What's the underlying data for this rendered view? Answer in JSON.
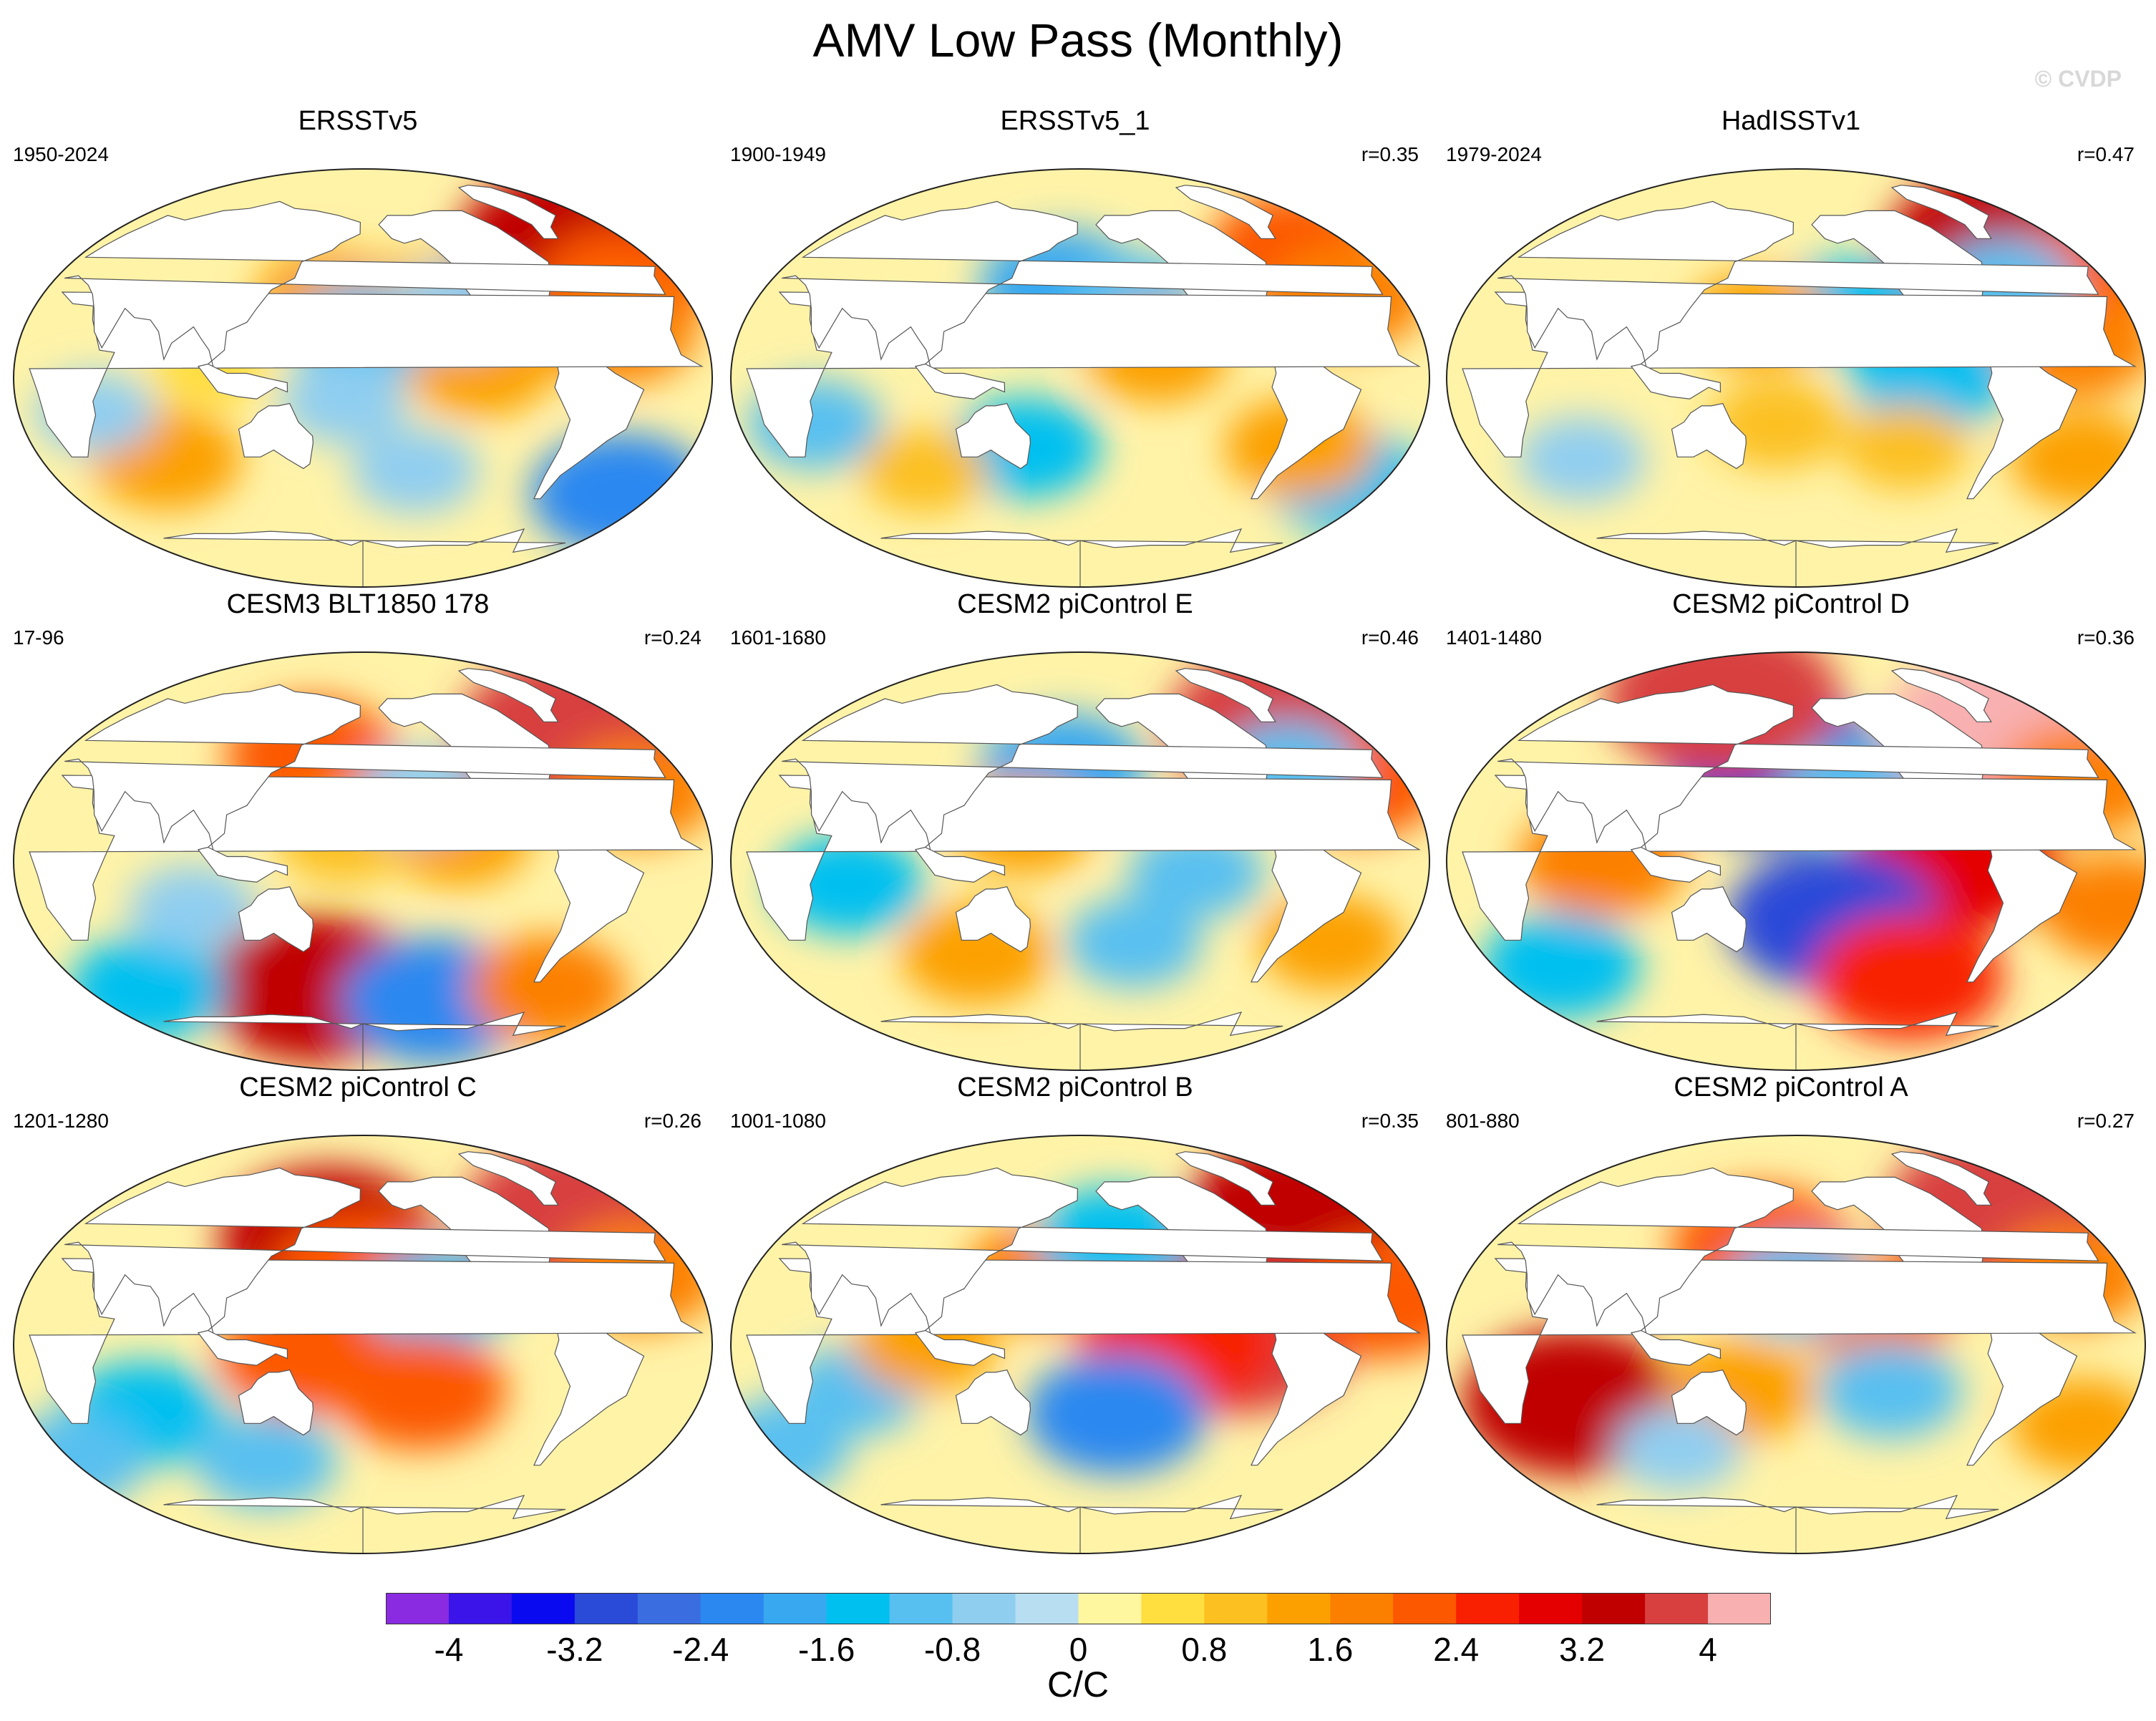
{
  "title": "AMV Low Pass (Monthly)",
  "watermark": "© CVDP",
  "panels": [
    {
      "title": "ERSSTv5",
      "years": "1950-2024",
      "r": ""
    },
    {
      "title": "ERSSTv5_1",
      "years": "1900-1949",
      "r": "r=0.35"
    },
    {
      "title": "HadISSTv1",
      "years": "1979-2024",
      "r": "r=0.47"
    },
    {
      "title": "CESM3 BLT1850 178",
      "years": "17-96",
      "r": "r=0.24"
    },
    {
      "title": "CESM2 piControl E",
      "years": "1601-1680",
      "r": "r=0.46"
    },
    {
      "title": "CESM2 piControl D",
      "years": "1401-1480",
      "r": "r=0.36"
    },
    {
      "title": "CESM2 piControl C",
      "years": "1201-1280",
      "r": "r=0.26"
    },
    {
      "title": "CESM2 piControl B",
      "years": "1001-1080",
      "r": "r=0.35"
    },
    {
      "title": "CESM2 piControl A",
      "years": "801-880",
      "r": "r=0.27"
    }
  ],
  "colorbar": {
    "label": "C/C",
    "ticks": [
      "-4",
      "-3.2",
      "-2.4",
      "-1.6",
      "-0.8",
      "0",
      "0.8",
      "1.6",
      "2.4",
      "3.2",
      "4"
    ],
    "colors": [
      "#8a2be2",
      "#3a14e8",
      "#0a0af0",
      "#2a4ad8",
      "#3a6ee0",
      "#2a88f0",
      "#38a8f0",
      "#00c0f0",
      "#58c0f0",
      "#90cef0",
      "#b8def2",
      "#fff6a0",
      "#ffde40",
      "#fcc020",
      "#fca000",
      "#fc8000",
      "#fc5800",
      "#f82000",
      "#e40000",
      "#c00000",
      "#d84040",
      "#f8b0b0"
    ]
  },
  "chart_data": {
    "type": "heatmap",
    "title": "AMV Low Pass (Monthly)",
    "description_units": "C/C",
    "color_scale": {
      "min": -4.4,
      "max": 4.4,
      "levels": [
        -4,
        -3.6,
        -3.2,
        -2.8,
        -2.4,
        -2,
        -1.6,
        -1.2,
        -0.8,
        -0.4,
        0,
        0.4,
        0.8,
        1.2,
        1.6,
        2,
        2.4,
        2.8,
        3.2,
        3.6,
        4
      ]
    },
    "panels": [
      {
        "name": "ERSSTv5",
        "period": "1950-2024",
        "pattern_r": null,
        "features": [
          {
            "lon": -40,
            "lat": 58,
            "value": 3.4
          },
          {
            "lon": -30,
            "lat": 40,
            "value": 2.0
          },
          {
            "lon": -45,
            "lat": 20,
            "value": 1.6
          },
          {
            "lon": -150,
            "lat": 35,
            "value": 1.0
          },
          {
            "lon": 160,
            "lat": 35,
            "value": 1.2
          },
          {
            "lon": -120,
            "lat": 5,
            "value": 1.4
          },
          {
            "lon": 180,
            "lat": 20,
            "value": -1.2
          },
          {
            "lon": -130,
            "lat": 30,
            "value": -0.8
          },
          {
            "lon": 170,
            "lat": -10,
            "value": -0.8
          },
          {
            "lon": -20,
            "lat": -50,
            "value": -2.2
          },
          {
            "lon": 70,
            "lat": -35,
            "value": 1.4
          },
          {
            "lon": 40,
            "lat": -15,
            "value": -0.6
          },
          {
            "lon": -150,
            "lat": -40,
            "value": -0.8
          },
          {
            "lon": 100,
            "lat": 5,
            "value": 0.6
          }
        ]
      },
      {
        "name": "ERSSTv5_1",
        "period": "1900-1949",
        "pattern_r": 0.35,
        "features": [
          {
            "lon": -40,
            "lat": 55,
            "value": 2.0
          },
          {
            "lon": -30,
            "lat": 35,
            "value": 1.6
          },
          {
            "lon": 170,
            "lat": 40,
            "value": -1.8
          },
          {
            "lon": -150,
            "lat": 35,
            "value": -1.0
          },
          {
            "lon": -140,
            "lat": 10,
            "value": 1.2
          },
          {
            "lon": 150,
            "lat": -30,
            "value": -1.4
          },
          {
            "lon": 40,
            "lat": -20,
            "value": -1.0
          },
          {
            "lon": -20,
            "lat": -45,
            "value": -1.6
          },
          {
            "lon": 90,
            "lat": -40,
            "value": 0.8
          },
          {
            "lon": -60,
            "lat": -30,
            "value": 1.4
          }
        ]
      },
      {
        "name": "HadISSTv1",
        "period": "1979-2024",
        "pattern_r": 0.47,
        "features": [
          {
            "lon": -45,
            "lat": 58,
            "value": 3.2
          },
          {
            "lon": -25,
            "lat": 40,
            "value": 2.2
          },
          {
            "lon": -35,
            "lat": 15,
            "value": 1.8
          },
          {
            "lon": -150,
            "lat": 30,
            "value": -1.4
          },
          {
            "lon": -110,
            "lat": 0,
            "value": -1.6
          },
          {
            "lon": 160,
            "lat": 25,
            "value": 1.2
          },
          {
            "lon": 170,
            "lat": -20,
            "value": 1.0
          },
          {
            "lon": -120,
            "lat": -30,
            "value": 0.8
          },
          {
            "lon": 60,
            "lat": -35,
            "value": -0.8
          },
          {
            "lon": -20,
            "lat": -35,
            "value": 1.2
          },
          {
            "lon": -60,
            "lat": 40,
            "value": -1.2
          }
        ]
      },
      {
        "name": "CESM3 BLT1850 178",
        "period": "17-96",
        "pattern_r": 0.24,
        "features": [
          {
            "lon": -40,
            "lat": 55,
            "value": 3.8
          },
          {
            "lon": -30,
            "lat": 30,
            "value": 1.6
          },
          {
            "lon": 150,
            "lat": 45,
            "value": 2.0
          },
          {
            "lon": -130,
            "lat": 10,
            "value": 1.2
          },
          {
            "lon": 170,
            "lat": 10,
            "value": 1.0
          },
          {
            "lon": -150,
            "lat": 30,
            "value": -0.8
          },
          {
            "lon": 150,
            "lat": -55,
            "value": 3.2
          },
          {
            "lon": -130,
            "lat": -60,
            "value": -2.4
          },
          {
            "lon": 40,
            "lat": -55,
            "value": -1.6
          },
          {
            "lon": -60,
            "lat": -55,
            "value": 1.6
          },
          {
            "lon": 90,
            "lat": -20,
            "value": -0.8
          }
        ]
      },
      {
        "name": "CESM2 piControl E",
        "period": "1601-1680",
        "pattern_r": 0.46,
        "features": [
          {
            "lon": -40,
            "lat": 58,
            "value": 3.8
          },
          {
            "lon": -25,
            "lat": 35,
            "value": 2.0
          },
          {
            "lon": -60,
            "lat": 40,
            "value": -1.2
          },
          {
            "lon": 170,
            "lat": 40,
            "value": -1.8
          },
          {
            "lon": 150,
            "lat": 15,
            "value": 1.2
          },
          {
            "lon": -120,
            "lat": -5,
            "value": -1.0
          },
          {
            "lon": 60,
            "lat": -10,
            "value": -1.4
          },
          {
            "lon": 120,
            "lat": -40,
            "value": 1.4
          },
          {
            "lon": -40,
            "lat": -35,
            "value": 1.2
          },
          {
            "lon": -150,
            "lat": -35,
            "value": -1.0
          }
        ]
      },
      {
        "name": "CESM2 piControl D",
        "period": "1401-1480",
        "pattern_r": 0.36,
        "features": [
          {
            "lon": -35,
            "lat": 58,
            "value": 4.2
          },
          {
            "lon": -20,
            "lat": 35,
            "value": 1.8
          },
          {
            "lon": 170,
            "lat": 40,
            "value": -3.2
          },
          {
            "lon": -150,
            "lat": 30,
            "value": -1.2
          },
          {
            "lon": -100,
            "lat": 0,
            "value": 3.0
          },
          {
            "lon": -160,
            "lat": -25,
            "value": -3.0
          },
          {
            "lon": 80,
            "lat": 0,
            "value": 1.8
          },
          {
            "lon": -110,
            "lat": -50,
            "value": 2.4
          },
          {
            "lon": 40,
            "lat": -45,
            "value": -1.6
          },
          {
            "lon": -10,
            "lat": -20,
            "value": 1.6
          },
          {
            "lon": 120,
            "lat": 70,
            "value": 3.6
          }
        ]
      },
      {
        "name": "CESM2 piControl C",
        "period": "1201-1280",
        "pattern_r": 0.26,
        "features": [
          {
            "lon": -40,
            "lat": 55,
            "value": 3.6
          },
          {
            "lon": 160,
            "lat": 45,
            "value": 3.2
          },
          {
            "lon": 180,
            "lat": 30,
            "value": 2.2
          },
          {
            "lon": -140,
            "lat": 20,
            "value": -1.4
          },
          {
            "lon": -150,
            "lat": -20,
            "value": 2.0
          },
          {
            "lon": 60,
            "lat": -30,
            "value": -1.6
          },
          {
            "lon": 150,
            "lat": -5,
            "value": 2.0
          },
          {
            "lon": -30,
            "lat": 30,
            "value": 1.8
          },
          {
            "lon": 0,
            "lat": -50,
            "value": -1.2
          },
          {
            "lon": 120,
            "lat": -50,
            "value": -1.2
          }
        ]
      },
      {
        "name": "CESM2 piControl B",
        "period": "1001-1080",
        "pattern_r": 0.35,
        "features": [
          {
            "lon": -40,
            "lat": 55,
            "value": 3.4
          },
          {
            "lon": -100,
            "lat": 5,
            "value": 3.8
          },
          {
            "lon": -130,
            "lat": 0,
            "value": 2.6
          },
          {
            "lon": -160,
            "lat": -30,
            "value": -2.2
          },
          {
            "lon": 160,
            "lat": 30,
            "value": 1.6
          },
          {
            "lon": -160,
            "lat": 45,
            "value": -1.6
          },
          {
            "lon": -20,
            "lat": 20,
            "value": 2.2
          },
          {
            "lon": 60,
            "lat": -20,
            "value": -1.0
          },
          {
            "lon": 0,
            "lat": -45,
            "value": -1.2
          },
          {
            "lon": 100,
            "lat": 0,
            "value": 1.2
          }
        ]
      },
      {
        "name": "CESM2 piControl A",
        "period": "801-880",
        "pattern_r": 0.27,
        "features": [
          {
            "lon": -40,
            "lat": 58,
            "value": 3.6
          },
          {
            "lon": 160,
            "lat": 42,
            "value": 2.2
          },
          {
            "lon": -140,
            "lat": 15,
            "value": 1.8
          },
          {
            "lon": 180,
            "lat": 25,
            "value": -1.2
          },
          {
            "lon": 60,
            "lat": -25,
            "value": 3.2
          },
          {
            "lon": -130,
            "lat": -20,
            "value": -1.2
          },
          {
            "lon": 150,
            "lat": -20,
            "value": 1.4
          },
          {
            "lon": -30,
            "lat": 30,
            "value": 1.6
          },
          {
            "lon": 110,
            "lat": -45,
            "value": -0.8
          },
          {
            "lon": -20,
            "lat": -35,
            "value": 1.2
          }
        ]
      }
    ]
  }
}
